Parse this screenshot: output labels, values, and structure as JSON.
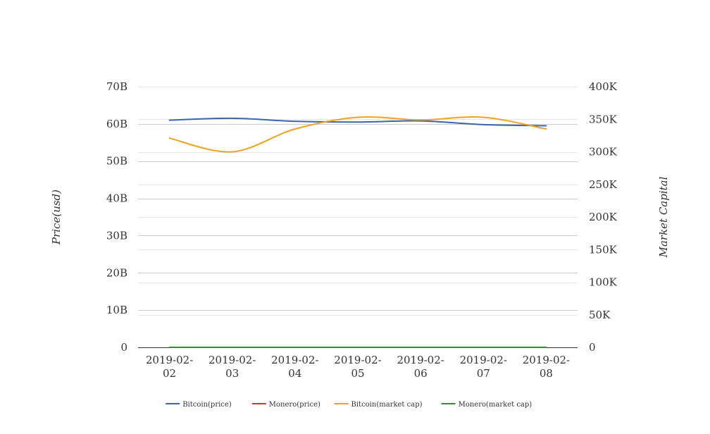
{
  "chart_data": {
    "type": "line",
    "categories": [
      "2019-02-02",
      "2019-02-03",
      "2019-02-04",
      "2019-02-05",
      "2019-02-06",
      "2019-02-07",
      "2019-02-08"
    ],
    "category_lines": [
      [
        "2019-02-",
        "02"
      ],
      [
        "2019-02-",
        "03"
      ],
      [
        "2019-02-",
        "04"
      ],
      [
        "2019-02-",
        "05"
      ],
      [
        "2019-02-",
        "06"
      ],
      [
        "2019-02-",
        "07"
      ],
      [
        "2019-02-",
        "08"
      ]
    ],
    "left_axis": {
      "label": "Price(usd)",
      "range": [
        0,
        70000000000
      ],
      "ticks": [
        0,
        10000000000,
        20000000000,
        30000000000,
        40000000000,
        50000000000,
        60000000000,
        70000000000
      ],
      "tick_labels": [
        "0",
        "10B",
        "20B",
        "30B",
        "40B",
        "50B",
        "60B",
        "70B"
      ]
    },
    "right_axis": {
      "label": "Market Capital",
      "range": [
        0,
        400000
      ],
      "ticks": [
        0,
        50000,
        100000,
        150000,
        200000,
        250000,
        300000,
        350000,
        400000
      ],
      "tick_labels": [
        "0",
        "50K",
        "100K",
        "150K",
        "200K",
        "250K",
        "300K",
        "350K",
        "400K"
      ]
    },
    "grid": true,
    "legend_position": "bottom",
    "series": [
      {
        "name": "Bitcoin(price)",
        "axis": "left",
        "color": "#3b64b0",
        "values": [
          61000000000,
          61500000000,
          60700000000,
          60500000000,
          60800000000,
          59800000000,
          59500000000
        ]
      },
      {
        "name": "Monero(price)",
        "axis": "left",
        "color": "#d03a1e",
        "values": [
          0,
          0,
          0,
          0,
          0,
          0,
          0
        ]
      },
      {
        "name": "Bitcoin(market cap)",
        "axis": "right",
        "color": "#f0a21f",
        "values": [
          321000,
          300000,
          335000,
          353000,
          349000,
          353000,
          335000
        ]
      },
      {
        "name": "Monero(market cap)",
        "axis": "right",
        "color": "#2e9430",
        "values": [
          0,
          0,
          0,
          0,
          0,
          0,
          0
        ]
      }
    ]
  }
}
